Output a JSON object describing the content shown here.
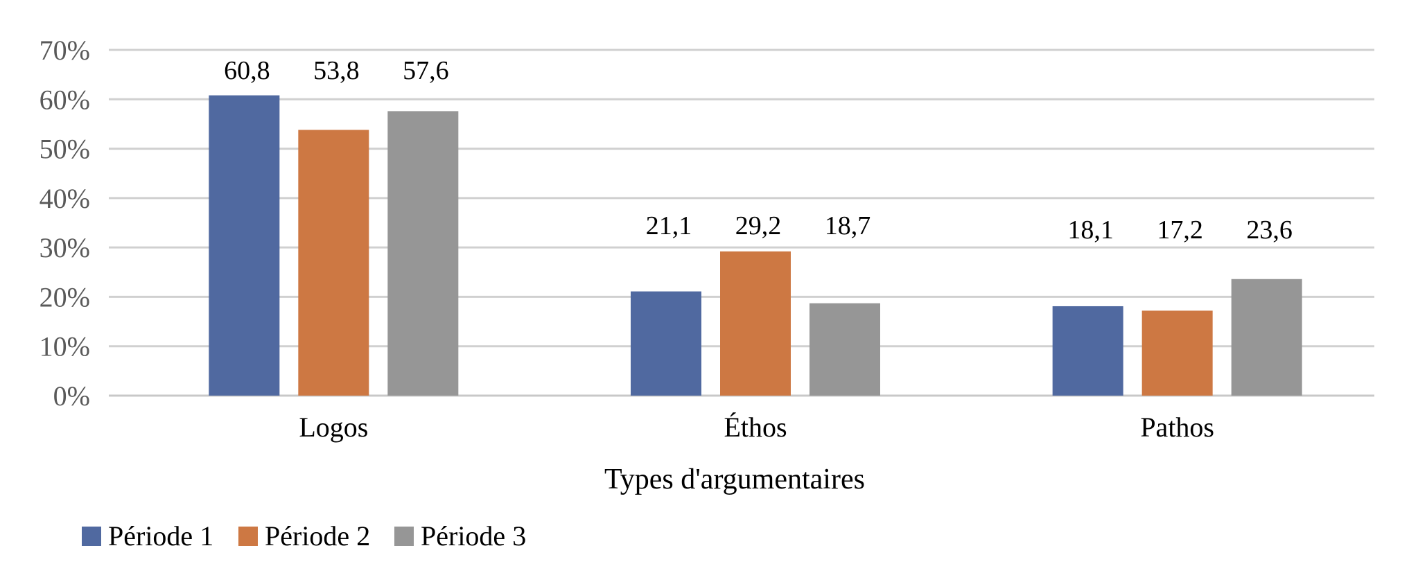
{
  "chart_data": {
    "type": "bar",
    "categories": [
      "Logos",
      "Éthos",
      "Pathos"
    ],
    "series": [
      {
        "name": "Période 1",
        "values": [
          60.8,
          21.1,
          18.1
        ],
        "labels": [
          "60,8",
          "21,1",
          "18,1"
        ],
        "color": "#5069a0"
      },
      {
        "name": "Période 2",
        "values": [
          53.8,
          29.2,
          17.2
        ],
        "labels": [
          "53,8",
          "29,2",
          "17,2"
        ],
        "color": "#cd7843"
      },
      {
        "name": "Période 3",
        "values": [
          57.6,
          18.7,
          23.6
        ],
        "labels": [
          "57,6",
          "18,7",
          "23,6"
        ],
        "color": "#969696"
      }
    ],
    "title": "",
    "xlabel": "Types d'argumentaires",
    "ylabel": "",
    "ylim": [
      0,
      70
    ],
    "yticks": [
      0,
      10,
      20,
      30,
      40,
      50,
      60,
      70
    ],
    "ytick_labels": [
      "0%",
      "10%",
      "20%",
      "30%",
      "40%",
      "50%",
      "60%",
      "70%"
    ],
    "grid": true,
    "legend_position": "bottom-left"
  }
}
